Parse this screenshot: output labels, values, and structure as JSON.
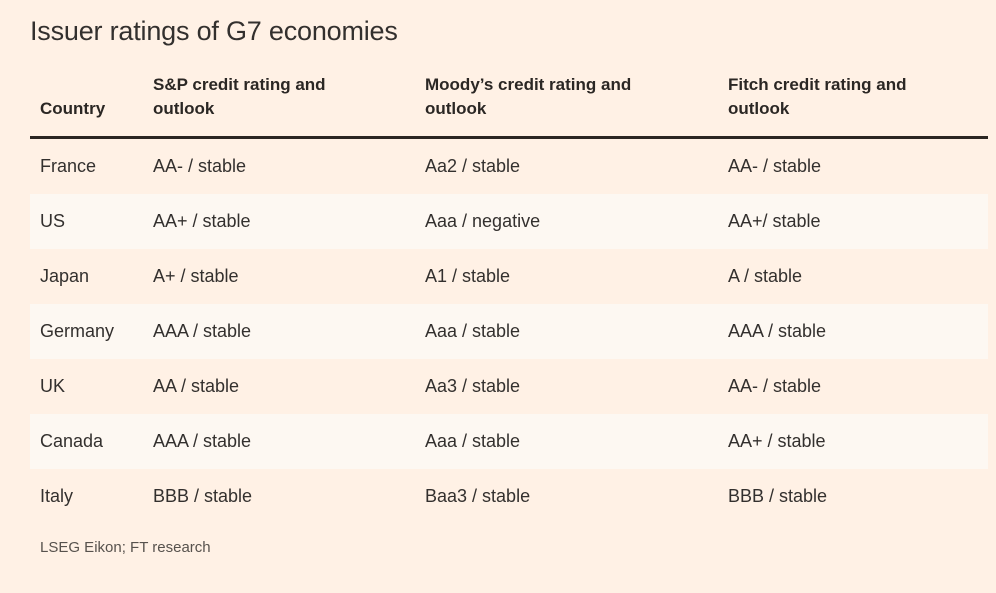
{
  "title": "Issuer ratings of G7 economies",
  "source": "LSEG Eikon; FT research",
  "colors": {
    "background": "#FFF1E5",
    "row_stripe": "#FDF8F2",
    "text": "#33302E",
    "header_rule": "#2B2622",
    "source_text": "#57524D"
  },
  "chart_data": {
    "type": "table",
    "title": "Issuer ratings of G7 economies",
    "columns": [
      "Country",
      "S&P credit rating and outlook",
      "Moody’s credit rating and outlook",
      "Fitch credit rating and outlook"
    ],
    "rows": [
      [
        "France",
        "AA- / stable",
        "Aa2 / stable",
        "AA- / stable"
      ],
      [
        "US",
        "AA+ / stable",
        "Aaa / negative",
        "AA+/ stable"
      ],
      [
        "Japan",
        "A+ / stable",
        "A1 / stable",
        "A / stable"
      ],
      [
        "Germany",
        "AAA / stable",
        "Aaa / stable",
        "AAA / stable"
      ],
      [
        "UK",
        "AA / stable",
        "Aa3 / stable",
        "AA- / stable"
      ],
      [
        "Canada",
        "AAA / stable",
        "Aaa / stable",
        "AA+ / stable"
      ],
      [
        "Italy",
        "BBB / stable",
        "Baa3 / stable",
        "BBB / stable"
      ]
    ],
    "source": "LSEG Eikon; FT research",
    "layout": {
      "striped_row_indices": [
        1,
        3,
        5
      ],
      "grid": "off",
      "legend": "none"
    }
  }
}
